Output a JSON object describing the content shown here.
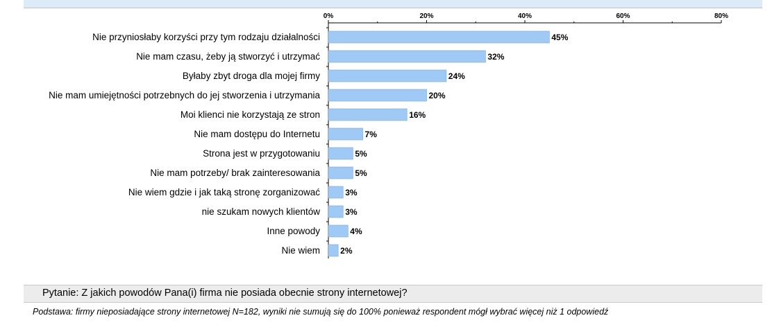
{
  "chart_data": {
    "type": "bar",
    "orientation": "horizontal",
    "categories": [
      "Nie przyniosłaby korzyści przy tym rodzaju działalności",
      "Nie mam czasu, żeby ją stworzyć i utrzymać",
      "Byłaby zbyt droga dla mojej firmy",
      "Nie mam umiejętności potrzebnych do jej stworzenia i utrzymania",
      "Moi klienci nie korzystają ze stron",
      "Nie mam dostępu do Internetu",
      "Strona jest w przygotowaniu",
      "Nie mam potrzeby/ brak zainteresowania",
      "Nie wiem gdzie i jak taką stronę zorganizować",
      "nie szukam nowych klientów",
      "Inne powody",
      "Nie wiem"
    ],
    "values": [
      45,
      32,
      24,
      20,
      16,
      7,
      5,
      5,
      3,
      3,
      4,
      2
    ],
    "value_labels": [
      "45%",
      "32%",
      "24%",
      "20%",
      "16%",
      "7%",
      "5%",
      "5%",
      "3%",
      "3%",
      "4%",
      "2%"
    ],
    "xlim": [
      0,
      80
    ],
    "xticks": [
      0,
      20,
      40,
      60,
      80
    ],
    "xtick_labels": [
      "0%",
      "20%",
      "40%",
      "60%",
      "80%"
    ],
    "axis_position": "top",
    "bar_color": "#9ecaf5",
    "bar_border_color": "#6fa8dc",
    "grid": false,
    "legend": "none"
  },
  "footer": {
    "question": "Pytanie: Z jakich powodów Pana(i) firma nie posiada obecnie strony internetowej?",
    "base": "Podstawa: firmy nieposiadające strony internetowej N=182, wyniki nie sumują się do 100% ponieważ respondent mógł wybrać więcej niż 1 odpowiedź"
  },
  "colors": {
    "header_band": "#dcebf7",
    "question_box": "#ececec"
  }
}
